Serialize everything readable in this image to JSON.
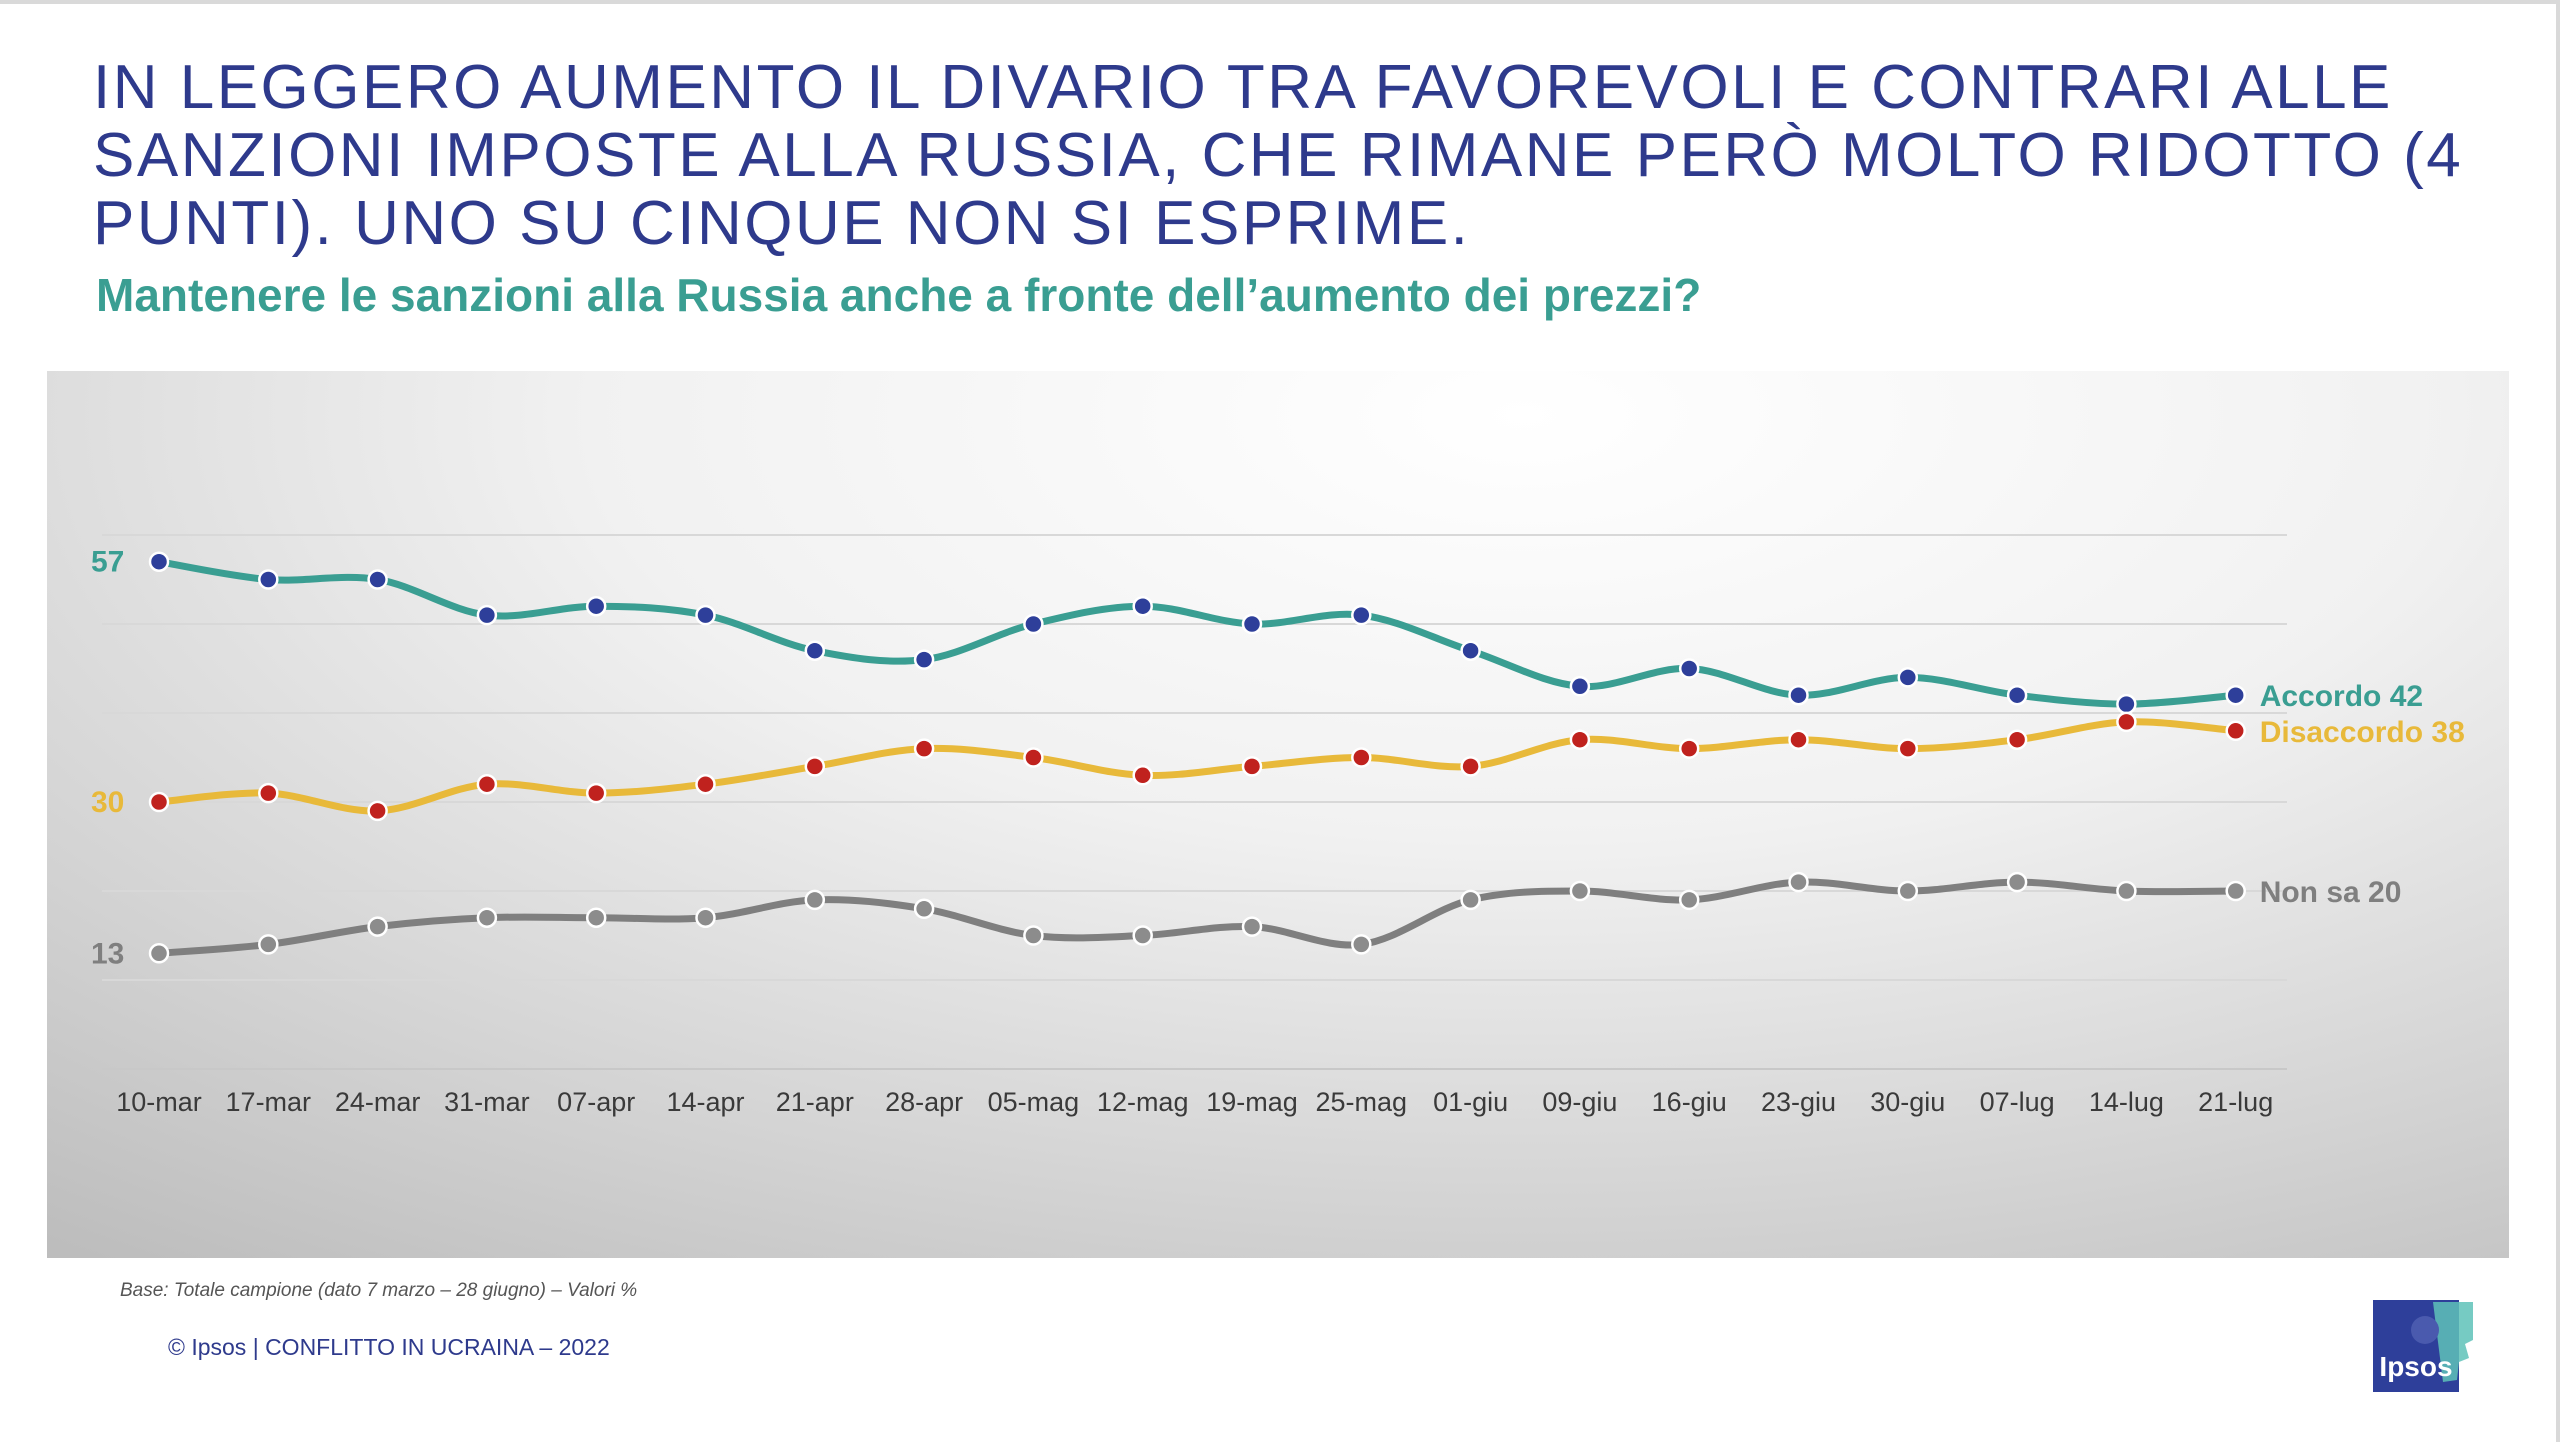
{
  "header": {
    "title": "IN LEGGERO AUMENTO IL DIVARIO TRA FAVOREVOLI E CONTRARI ALLE SANZIONI IMPOSTE ALLA RUSSIA, CHE RIMANE PERÒ MOLTO RIDOTTO (4 PUNTI). UNO SU CINQUE NON SI ESPRIME.",
    "subtitle": "Mantenere le sanzioni alla Russia anche a fronte dell’aumento dei prezzi?"
  },
  "chart_data": {
    "type": "line",
    "x": [
      "10-mar",
      "17-mar",
      "24-mar",
      "31-mar",
      "07-apr",
      "14-apr",
      "21-apr",
      "28-apr",
      "05-mag",
      "12-mag",
      "19-mag",
      "25-mag",
      "01-giu",
      "09-giu",
      "16-giu",
      "23-giu",
      "30-giu",
      "07-lug",
      "14-lug",
      "21-lug"
    ],
    "ylim": [
      0,
      70
    ],
    "grid": true,
    "series": [
      {
        "name": "Accordo",
        "values": [
          57,
          55,
          55,
          51,
          52,
          51,
          47,
          46,
          50,
          52,
          50,
          51,
          47,
          43,
          45,
          42,
          44,
          42,
          41,
          42
        ],
        "color": "#3a9e92",
        "marker_color": "#2e3f9a",
        "start_label": "57",
        "end_label": "Accordo 42"
      },
      {
        "name": "Disaccordo",
        "values": [
          30,
          31,
          29,
          32,
          31,
          32,
          34,
          36,
          35,
          33,
          34,
          35,
          34,
          37,
          36,
          37,
          36,
          37,
          39,
          38
        ],
        "color": "#e8b93a",
        "marker_color": "#c0221e",
        "start_label": "30",
        "end_label": "Disaccordo 38"
      },
      {
        "name": "Non sa",
        "values": [
          13,
          14,
          16,
          17,
          17,
          17,
          19,
          18,
          15,
          15,
          16,
          14,
          19,
          20,
          19,
          21,
          20,
          21,
          20,
          20
        ],
        "color": "#7f7f7f",
        "marker_color": "#8c8c8c",
        "start_label": "13",
        "end_label": "Non sa 20"
      }
    ]
  },
  "footer": {
    "base_note": "Base: Totale campione (dato 7 marzo –  28 giugno) – Valori %",
    "copyright": "© Ipsos | CONFLITTO IN UCRAINA – 2022",
    "logo_text": "Ipsos",
    "brand_color": "#2e3f9a",
    "logo_accent": "#5ec2b8"
  }
}
